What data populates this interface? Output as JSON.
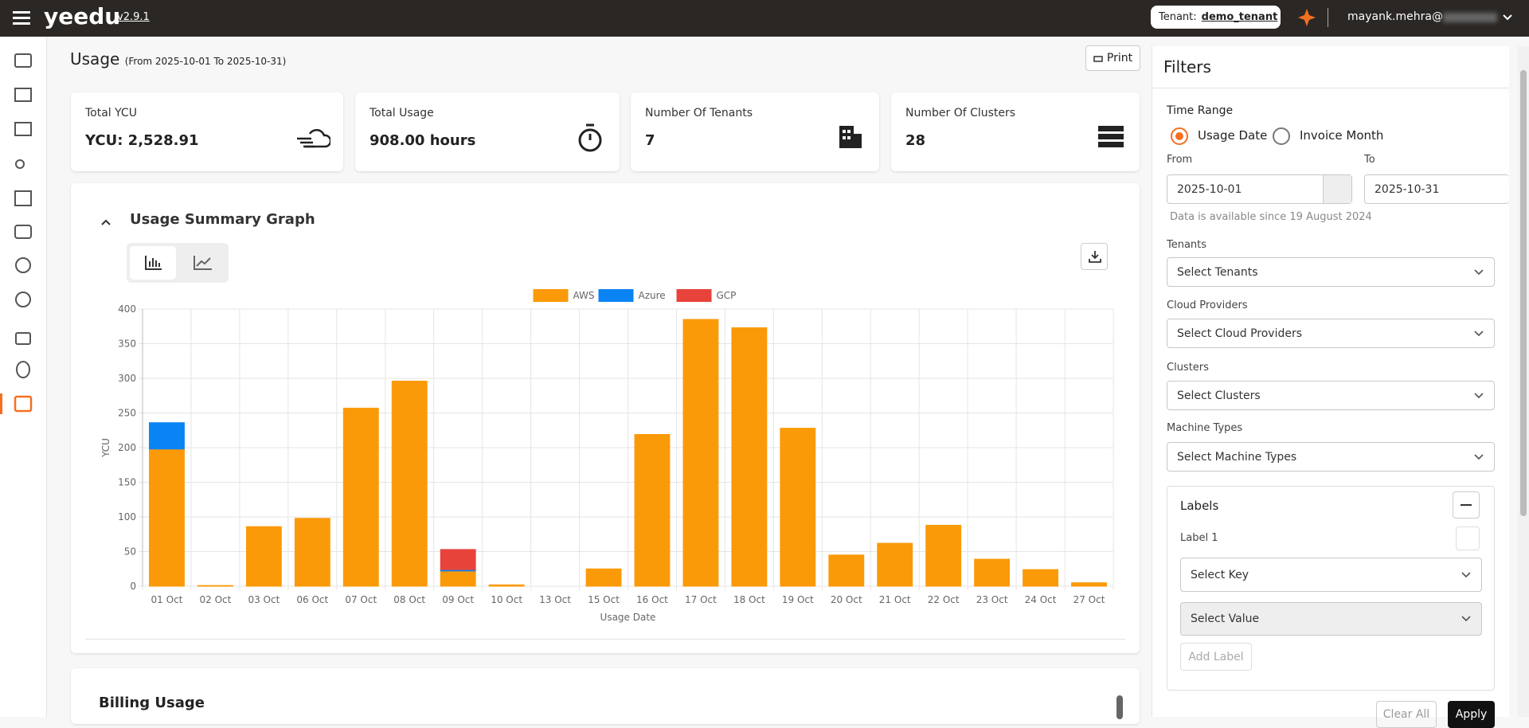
{
  "header": {
    "logo": "yeedu",
    "version": "v2.9.1",
    "tenant_label": "Tenant:",
    "tenant": "demo_tenant",
    "user": "mayank.mehra@"
  },
  "page": {
    "title": "Usage",
    "date_range": "(From 2025-10-01 To 2025-10-31)",
    "print": "Print"
  },
  "cards": [
    {
      "label": "Total YCU",
      "value": "YCU: 2,528.91"
    },
    {
      "label": "Total Usage",
      "value": "908.00 hours"
    },
    {
      "label": "Number Of Tenants",
      "value": "7"
    },
    {
      "label": "Number Of Clusters",
      "value": "28"
    }
  ],
  "chart_panel": {
    "title": "Usage Summary Graph"
  },
  "chart_data": {
    "type": "bar",
    "stacked": true,
    "categories": [
      "01 Oct",
      "02 Oct",
      "03 Oct",
      "06 Oct",
      "07 Oct",
      "08 Oct",
      "09 Oct",
      "10 Oct",
      "13 Oct",
      "15 Oct",
      "16 Oct",
      "17 Oct",
      "18 Oct",
      "19 Oct",
      "20 Oct",
      "21 Oct",
      "22 Oct",
      "23 Oct",
      "24 Oct",
      "27 Oct"
    ],
    "series": [
      {
        "name": "AWS",
        "color": "#fb9a08",
        "values": [
          198,
          1,
          86,
          98,
          257,
          296,
          22,
          2,
          0,
          25,
          219,
          385,
          373,
          228,
          45,
          62,
          88,
          39,
          24,
          5
        ]
      },
      {
        "name": "Azure",
        "color": "#0a84f5",
        "values": [
          38,
          0,
          0,
          0,
          0,
          0,
          2,
          0,
          0,
          0,
          0,
          0,
          0,
          0,
          0,
          0,
          0,
          0,
          0,
          0
        ]
      },
      {
        "name": "GCP",
        "color": "#e8433a",
        "values": [
          0,
          0,
          0,
          0,
          0,
          0,
          29,
          0,
          0,
          0,
          0,
          0,
          0,
          0,
          0,
          0,
          0,
          0,
          0,
          0
        ]
      }
    ],
    "ylim": [
      0,
      400
    ],
    "yticks": [
      0,
      50,
      100,
      150,
      200,
      250,
      300,
      350,
      400
    ],
    "xlabel": "Usage Date",
    "ylabel": "YCU",
    "grid": true,
    "legend": "top"
  },
  "billing": {
    "title": "Billing Usage"
  },
  "filters": {
    "title": "Filters",
    "time_range": "Time Range",
    "options": [
      "Usage Date",
      "Invoice Month"
    ],
    "from_label": "From",
    "from": "2025-10-01",
    "to_label": "To",
    "to": "2025-10-31",
    "note": "Data is available since 19 August 2024",
    "tenants_label": "Tenants",
    "tenants": "Select Tenants",
    "cloud_label": "Cloud Providers",
    "cloud": "Select Cloud Providers",
    "clusters_label": "Clusters",
    "clusters": "Select Clusters",
    "machine_label": "Machine Types",
    "machine": "Select Machine Types",
    "labels_title": "Labels",
    "label_1": "Label 1",
    "key": "Select Key",
    "value": "Select Value",
    "add_label": "Add Label",
    "clear": "Clear All",
    "apply": "Apply"
  }
}
